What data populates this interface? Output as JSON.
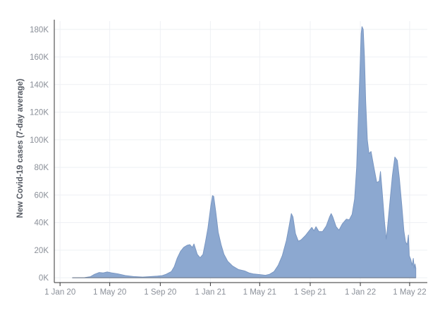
{
  "chart_data": {
    "type": "area",
    "title": "",
    "xlabel": "",
    "ylabel": "New Covid-19 cases (7-day average)",
    "x_tick_labels": [
      {
        "date": "2020-01-01",
        "label": "1 Jan 20"
      },
      {
        "date": "2020-05-01",
        "label": "1 May 20"
      },
      {
        "date": "2020-09-01",
        "label": "1 Sep 20"
      },
      {
        "date": "2021-01-01",
        "label": "1 Jan 21"
      },
      {
        "date": "2021-05-01",
        "label": "1 May 21"
      },
      {
        "date": "2021-09-01",
        "label": "1 Sep 21"
      },
      {
        "date": "2022-01-01",
        "label": "1 Jan 22"
      },
      {
        "date": "2022-05-01",
        "label": "1 May 22"
      }
    ],
    "y_ticks": [
      {
        "value": 0,
        "label": "0K"
      },
      {
        "value": 20000,
        "label": "20K"
      },
      {
        "value": 40000,
        "label": "40K"
      },
      {
        "value": 60000,
        "label": "60K"
      },
      {
        "value": 80000,
        "label": "80K"
      },
      {
        "value": 100000,
        "label": "100K"
      },
      {
        "value": 120000,
        "label": "120K"
      },
      {
        "value": 140000,
        "label": "140K"
      },
      {
        "value": 160000,
        "label": "160K"
      },
      {
        "value": 180000,
        "label": "180K"
      }
    ],
    "xlim": [
      "2019-12-18",
      "2022-06-13"
    ],
    "ylim": [
      -3500,
      186000
    ],
    "grid": true,
    "fill_color": "#8ca8d0",
    "line_color": "#7a97c2",
    "points": [
      [
        "2020-01-31",
        0
      ],
      [
        "2020-03-01",
        100
      ],
      [
        "2020-03-15",
        800
      ],
      [
        "2020-03-25",
        2500
      ],
      [
        "2020-04-05",
        3800
      ],
      [
        "2020-04-15",
        3500
      ],
      [
        "2020-04-25",
        4200
      ],
      [
        "2020-05-05",
        3600
      ],
      [
        "2020-05-20",
        2900
      ],
      [
        "2020-06-10",
        1500
      ],
      [
        "2020-07-01",
        800
      ],
      [
        "2020-07-20",
        500
      ],
      [
        "2020-08-10",
        900
      ],
      [
        "2020-08-25",
        1200
      ],
      [
        "2020-09-05",
        1500
      ],
      [
        "2020-09-15",
        2500
      ],
      [
        "2020-09-28",
        4500
      ],
      [
        "2020-10-05",
        8000
      ],
      [
        "2020-10-12",
        14000
      ],
      [
        "2020-10-20",
        19000
      ],
      [
        "2020-10-28",
        22000
      ],
      [
        "2020-11-05",
        23500
      ],
      [
        "2020-11-12",
        24000
      ],
      [
        "2020-11-18",
        22000
      ],
      [
        "2020-11-22",
        24500
      ],
      [
        "2020-11-30",
        17000
      ],
      [
        "2020-12-07",
        14500
      ],
      [
        "2020-12-14",
        17000
      ],
      [
        "2020-12-20",
        26000
      ],
      [
        "2020-12-26",
        36000
      ],
      [
        "2021-01-02",
        52000
      ],
      [
        "2021-01-06",
        59500
      ],
      [
        "2021-01-09",
        59000
      ],
      [
        "2021-01-14",
        48000
      ],
      [
        "2021-01-20",
        33000
      ],
      [
        "2021-01-27",
        24000
      ],
      [
        "2021-02-03",
        17000
      ],
      [
        "2021-02-12",
        12000
      ],
      [
        "2021-02-24",
        8500
      ],
      [
        "2021-03-10",
        6000
      ],
      [
        "2021-03-25",
        5000
      ],
      [
        "2021-04-05",
        3500
      ],
      [
        "2021-04-15",
        2800
      ],
      [
        "2021-04-25",
        2500
      ],
      [
        "2021-05-05",
        2200
      ],
      [
        "2021-05-15",
        1800
      ],
      [
        "2021-05-25",
        2500
      ],
      [
        "2021-06-05",
        4500
      ],
      [
        "2021-06-15",
        9000
      ],
      [
        "2021-06-25",
        16000
      ],
      [
        "2021-07-05",
        27000
      ],
      [
        "2021-07-12",
        38000
      ],
      [
        "2021-07-17",
        46500
      ],
      [
        "2021-07-21",
        44000
      ],
      [
        "2021-07-27",
        32000
      ],
      [
        "2021-08-03",
        26500
      ],
      [
        "2021-08-10",
        27500
      ],
      [
        "2021-08-20",
        30500
      ],
      [
        "2021-08-28",
        33500
      ],
      [
        "2021-09-05",
        36500
      ],
      [
        "2021-09-10",
        34000
      ],
      [
        "2021-09-15",
        37000
      ],
      [
        "2021-09-22",
        33500
      ],
      [
        "2021-10-01",
        33500
      ],
      [
        "2021-10-10",
        37500
      ],
      [
        "2021-10-18",
        44000
      ],
      [
        "2021-10-22",
        46500
      ],
      [
        "2021-10-26",
        44000
      ],
      [
        "2021-11-03",
        37000
      ],
      [
        "2021-11-10",
        34500
      ],
      [
        "2021-11-18",
        39000
      ],
      [
        "2021-11-28",
        42500
      ],
      [
        "2021-12-05",
        42000
      ],
      [
        "2021-12-12",
        46000
      ],
      [
        "2021-12-18",
        57000
      ],
      [
        "2021-12-23",
        80000
      ],
      [
        "2021-12-27",
        115000
      ],
      [
        "2021-12-31",
        150000
      ],
      [
        "2022-01-03",
        177000
      ],
      [
        "2022-01-05",
        182000
      ],
      [
        "2022-01-08",
        180000
      ],
      [
        "2022-01-11",
        160000
      ],
      [
        "2022-01-14",
        128000
      ],
      [
        "2022-01-18",
        100000
      ],
      [
        "2022-01-22",
        90000
      ],
      [
        "2022-01-27",
        91500
      ],
      [
        "2022-02-03",
        80000
      ],
      [
        "2022-02-10",
        69000
      ],
      [
        "2022-02-16",
        70000
      ],
      [
        "2022-02-19",
        77000
      ],
      [
        "2022-02-23",
        63000
      ],
      [
        "2022-03-01",
        40000
      ],
      [
        "2022-03-05",
        28000
      ],
      [
        "2022-03-08",
        36000
      ],
      [
        "2022-03-14",
        55000
      ],
      [
        "2022-03-20",
        74000
      ],
      [
        "2022-03-26",
        87500
      ],
      [
        "2022-04-01",
        85000
      ],
      [
        "2022-04-06",
        72000
      ],
      [
        "2022-04-12",
        52000
      ],
      [
        "2022-04-17",
        34000
      ],
      [
        "2022-04-21",
        26000
      ],
      [
        "2022-04-25",
        24000
      ],
      [
        "2022-04-28",
        31000
      ],
      [
        "2022-04-30",
        16000
      ],
      [
        "2022-05-04",
        13000
      ],
      [
        "2022-05-07",
        9000
      ],
      [
        "2022-05-10",
        14000
      ],
      [
        "2022-05-12",
        7000
      ],
      [
        "2022-05-14",
        10000
      ],
      [
        "2022-05-16",
        7000
      ]
    ]
  }
}
